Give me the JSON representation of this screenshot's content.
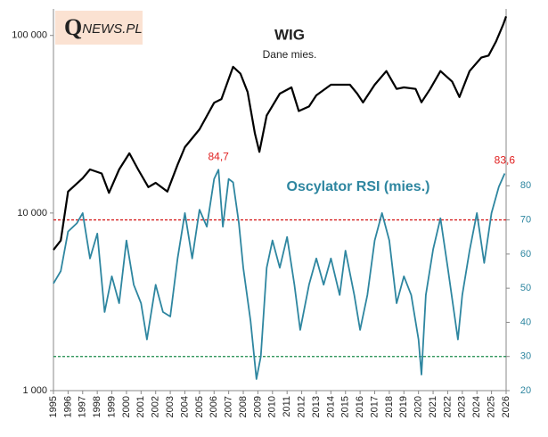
{
  "chart_data": {
    "type": "line",
    "subtitle": "Dane mies.",
    "logo_q": "Q",
    "logo_rest": "NEWS.PL",
    "xlim": [
      1995,
      2026
    ],
    "xticks": [
      1995,
      1996,
      1997,
      1998,
      1999,
      2000,
      2001,
      2002,
      2003,
      2004,
      2005,
      2006,
      2007,
      2008,
      2009,
      2010,
      2011,
      2012,
      2013,
      2014,
      2015,
      2016,
      2017,
      2018,
      2019,
      2020,
      2021,
      2022,
      2023,
      2024,
      2025,
      2026
    ],
    "ylim": [
      1000,
      141000
    ],
    "log_y": true,
    "yticks": [
      {
        "value": 1000,
        "label": "1 000"
      },
      {
        "value": 10000,
        "label": "10 000"
      },
      {
        "value": 100000,
        "label": "100 000"
      }
    ],
    "y2lim": [
      20,
      131.8
    ],
    "y2ticks": [
      20,
      30,
      40,
      50,
      60,
      70,
      80
    ],
    "reference_lines": [
      {
        "axis": "y2",
        "value": 70,
        "color": "#d62020"
      },
      {
        "axis": "y2",
        "value": 30,
        "color": "#1a8a4a"
      }
    ],
    "series": [
      {
        "name": "WIG",
        "color": "#000000",
        "x": [
          1995.0,
          1995.5,
          1996.0,
          1997.0,
          1997.5,
          1998.3,
          1998.8,
          1999.5,
          2000.2,
          2000.8,
          2001.5,
          2002.0,
          2002.8,
          2003.5,
          2004.0,
          2005.0,
          2006.0,
          2006.5,
          2007.3,
          2007.8,
          2008.3,
          2008.8,
          2009.1,
          2009.6,
          2010.5,
          2011.3,
          2011.8,
          2012.5,
          2013.0,
          2014.0,
          2015.3,
          2015.8,
          2016.2,
          2017.0,
          2017.8,
          2018.5,
          2019.0,
          2019.8,
          2020.2,
          2020.8,
          2021.5,
          2022.3,
          2022.8,
          2023.5,
          2024.3,
          2024.8,
          2025.3,
          2025.8,
          2026.0
        ],
        "values": [
          6200,
          7000,
          13200,
          15700,
          17600,
          16700,
          13000,
          17600,
          21700,
          17600,
          14000,
          14800,
          13200,
          18700,
          23500,
          29600,
          41800,
          43800,
          66600,
          61000,
          48000,
          28000,
          22100,
          35400,
          47000,
          51000,
          37500,
          39800,
          46000,
          52800,
          52800,
          47000,
          41900,
          52800,
          63000,
          50000,
          51000,
          50000,
          42000,
          50000,
          63000,
          55000,
          45000,
          63000,
          75000,
          77000,
          92000,
          115000,
          128000
        ]
      },
      {
        "name": "Oscylator RSI (mies.)",
        "color": "#2e86a0",
        "axis": "y2",
        "x": [
          1995.0,
          1995.5,
          1996.0,
          1996.6,
          1997.0,
          1997.5,
          1998.0,
          1998.5,
          1999.0,
          1999.5,
          2000.0,
          2000.5,
          2001.0,
          2001.4,
          2002.0,
          2002.5,
          2003.0,
          2003.5,
          2004.0,
          2004.5,
          2005.0,
          2005.5,
          2006.0,
          2006.3,
          2006.6,
          2007.0,
          2007.3,
          2007.7,
          2008.0,
          2008.5,
          2008.9,
          2009.2,
          2009.6,
          2010.0,
          2010.5,
          2011.0,
          2011.5,
          2011.9,
          2012.5,
          2013.0,
          2013.5,
          2014.0,
          2014.6,
          2015.0,
          2015.6,
          2016.0,
          2016.5,
          2017.0,
          2017.5,
          2018.0,
          2018.5,
          2019.0,
          2019.5,
          2020.0,
          2020.2,
          2020.5,
          2021.0,
          2021.5,
          2022.0,
          2022.7,
          2023.0,
          2023.5,
          2024.0,
          2024.5,
          2025.0,
          2025.5,
          2025.9
        ],
        "values": [
          51.4,
          55,
          66.6,
          69,
          72,
          58.7,
          66,
          43,
          53.5,
          45.6,
          64,
          51,
          45.6,
          35,
          51,
          43,
          41.7,
          58.7,
          72,
          58.7,
          73,
          68,
          82,
          84.7,
          68,
          82,
          81,
          69,
          56,
          40.4,
          23.4,
          30,
          56,
          64,
          56,
          65,
          51,
          37.8,
          51,
          58.7,
          51,
          58.7,
          48,
          61,
          48,
          37.8,
          48,
          64,
          72,
          64,
          45.6,
          53.5,
          48,
          35,
          24.7,
          48,
          61.4,
          70.5,
          56,
          35,
          48,
          61,
          72,
          57.4,
          72,
          79.7,
          83.6
        ]
      }
    ],
    "annotations": [
      {
        "text": "84,7",
        "x": 2006.3,
        "y": 84.7,
        "axis": "y2",
        "color": "#e02020"
      },
      {
        "text": "83,6",
        "x": 2025.9,
        "y": 83.6,
        "axis": "y2",
        "color": "#e02020"
      }
    ]
  }
}
